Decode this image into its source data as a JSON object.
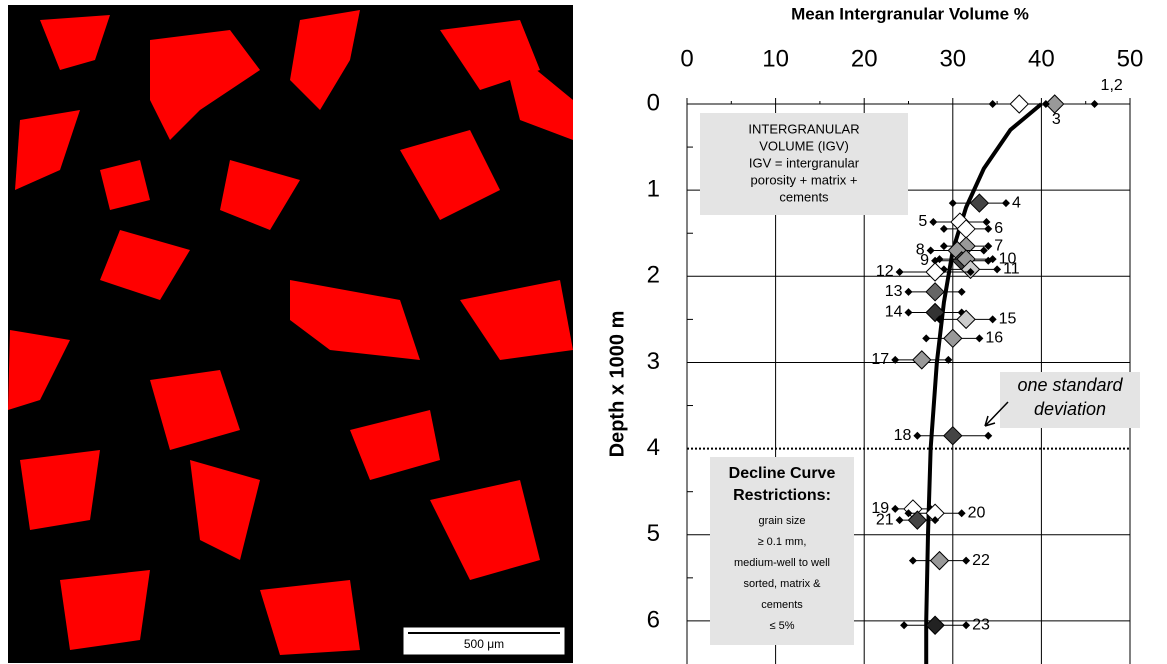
{
  "micrograph": {
    "scale_bar": "500 μm"
  },
  "chart_data": {
    "type": "scatter",
    "title": "Mean Intergranular Volume %",
    "y_label": "Depth x 1000 m",
    "xlim": [
      0,
      50
    ],
    "xticks": [
      0,
      10,
      20,
      30,
      40,
      50
    ],
    "ylim": [
      0,
      6.5
    ],
    "yticks": [
      0,
      1,
      2,
      3,
      4,
      5,
      6
    ],
    "y_inverted": true,
    "x_axis_top": true,
    "grid": true,
    "points": [
      {
        "label": "1,2",
        "x": 41.5,
        "y": 0,
        "error": 4.5,
        "color": "#999999"
      },
      {
        "label": "3",
        "x": 37.5,
        "y": 0,
        "error": 3,
        "color": "#ffffff"
      },
      {
        "label": "4",
        "x": 33,
        "y": 1.15,
        "error": 3,
        "color": "#444444"
      },
      {
        "label": "5",
        "x": 30.8,
        "y": 1.37,
        "error": 3,
        "color": "#ffffff"
      },
      {
        "label": "6",
        "x": 31.5,
        "y": 1.45,
        "error": 2.5,
        "color": "#ffffff"
      },
      {
        "label": "7",
        "x": 31.5,
        "y": 1.65,
        "error": 2.5,
        "color": "#999999"
      },
      {
        "label": "8",
        "x": 30.5,
        "y": 1.7,
        "error": 3,
        "color": "#999999"
      },
      {
        "label": "9",
        "x": 31,
        "y": 1.82,
        "error": 3,
        "color": "#444444"
      },
      {
        "label": "10",
        "x": 31.5,
        "y": 1.8,
        "error": 3,
        "color": "#999999"
      },
      {
        "label": "11",
        "x": 32,
        "y": 1.92,
        "error": 3,
        "color": "#cccccc"
      },
      {
        "label": "12",
        "x": 28,
        "y": 1.95,
        "error": 4,
        "color": "#ffffff"
      },
      {
        "label": "13",
        "x": 28,
        "y": 2.18,
        "error": 3,
        "color": "#666666"
      },
      {
        "label": "14",
        "x": 28,
        "y": 2.42,
        "error": 3,
        "color": "#333333"
      },
      {
        "label": "15",
        "x": 31.5,
        "y": 2.5,
        "error": 3,
        "color": "#cccccc"
      },
      {
        "label": "16",
        "x": 30,
        "y": 2.72,
        "error": 3,
        "color": "#999999"
      },
      {
        "label": "17",
        "x": 26.5,
        "y": 2.97,
        "error": 3,
        "color": "#999999"
      },
      {
        "label": "18",
        "x": 30,
        "y": 3.85,
        "error": 4,
        "color": "#444444"
      },
      {
        "label": "19",
        "x": 25.5,
        "y": 4.7,
        "error": 2,
        "color": "#ffffff"
      },
      {
        "label": "20",
        "x": 28,
        "y": 4.75,
        "error": 3,
        "color": "#ffffff"
      },
      {
        "label": "21",
        "x": 26,
        "y": 4.83,
        "error": 2,
        "color": "#444444"
      },
      {
        "label": "22",
        "x": 28.5,
        "y": 5.3,
        "error": 3,
        "color": "#999999"
      },
      {
        "label": "23",
        "x": 28,
        "y": 6.05,
        "error": 3.5,
        "color": "#222222"
      }
    ],
    "curve": {
      "x": [
        40,
        36.5,
        33.5,
        31.5,
        30,
        29,
        28.2,
        27.5,
        27.2,
        27,
        27
      ],
      "y": [
        0,
        0.3,
        0.75,
        1.2,
        1.7,
        2.3,
        3,
        4,
        5,
        6,
        6.5
      ]
    },
    "annotations": {
      "igv_box": [
        "INTERGRANULAR",
        "VOLUME (IGV)",
        "IGV = intergranular",
        "porosity + matrix +",
        "cements"
      ],
      "std_dev": [
        "one standard",
        "deviation"
      ],
      "decline_title": [
        "Decline Curve",
        "Restrictions:"
      ],
      "decline_text": [
        "grain size",
        "≥ 0.1 mm,",
        "medium-well to well",
        "sorted, matrix &",
        "cements",
        "≤ 5%"
      ]
    }
  }
}
